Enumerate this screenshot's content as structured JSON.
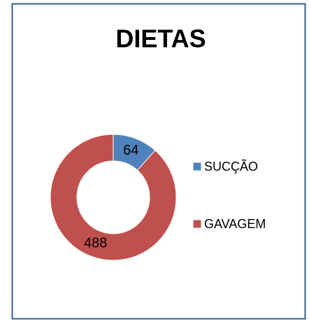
{
  "chart_data": {
    "type": "doughnut",
    "title": "DIETAS",
    "categories": [
      "SUCÇÃO",
      "GAVAGEM"
    ],
    "values": [
      64,
      488
    ],
    "colors": [
      "#4f81bd",
      "#c0504d"
    ],
    "legend": "right"
  }
}
